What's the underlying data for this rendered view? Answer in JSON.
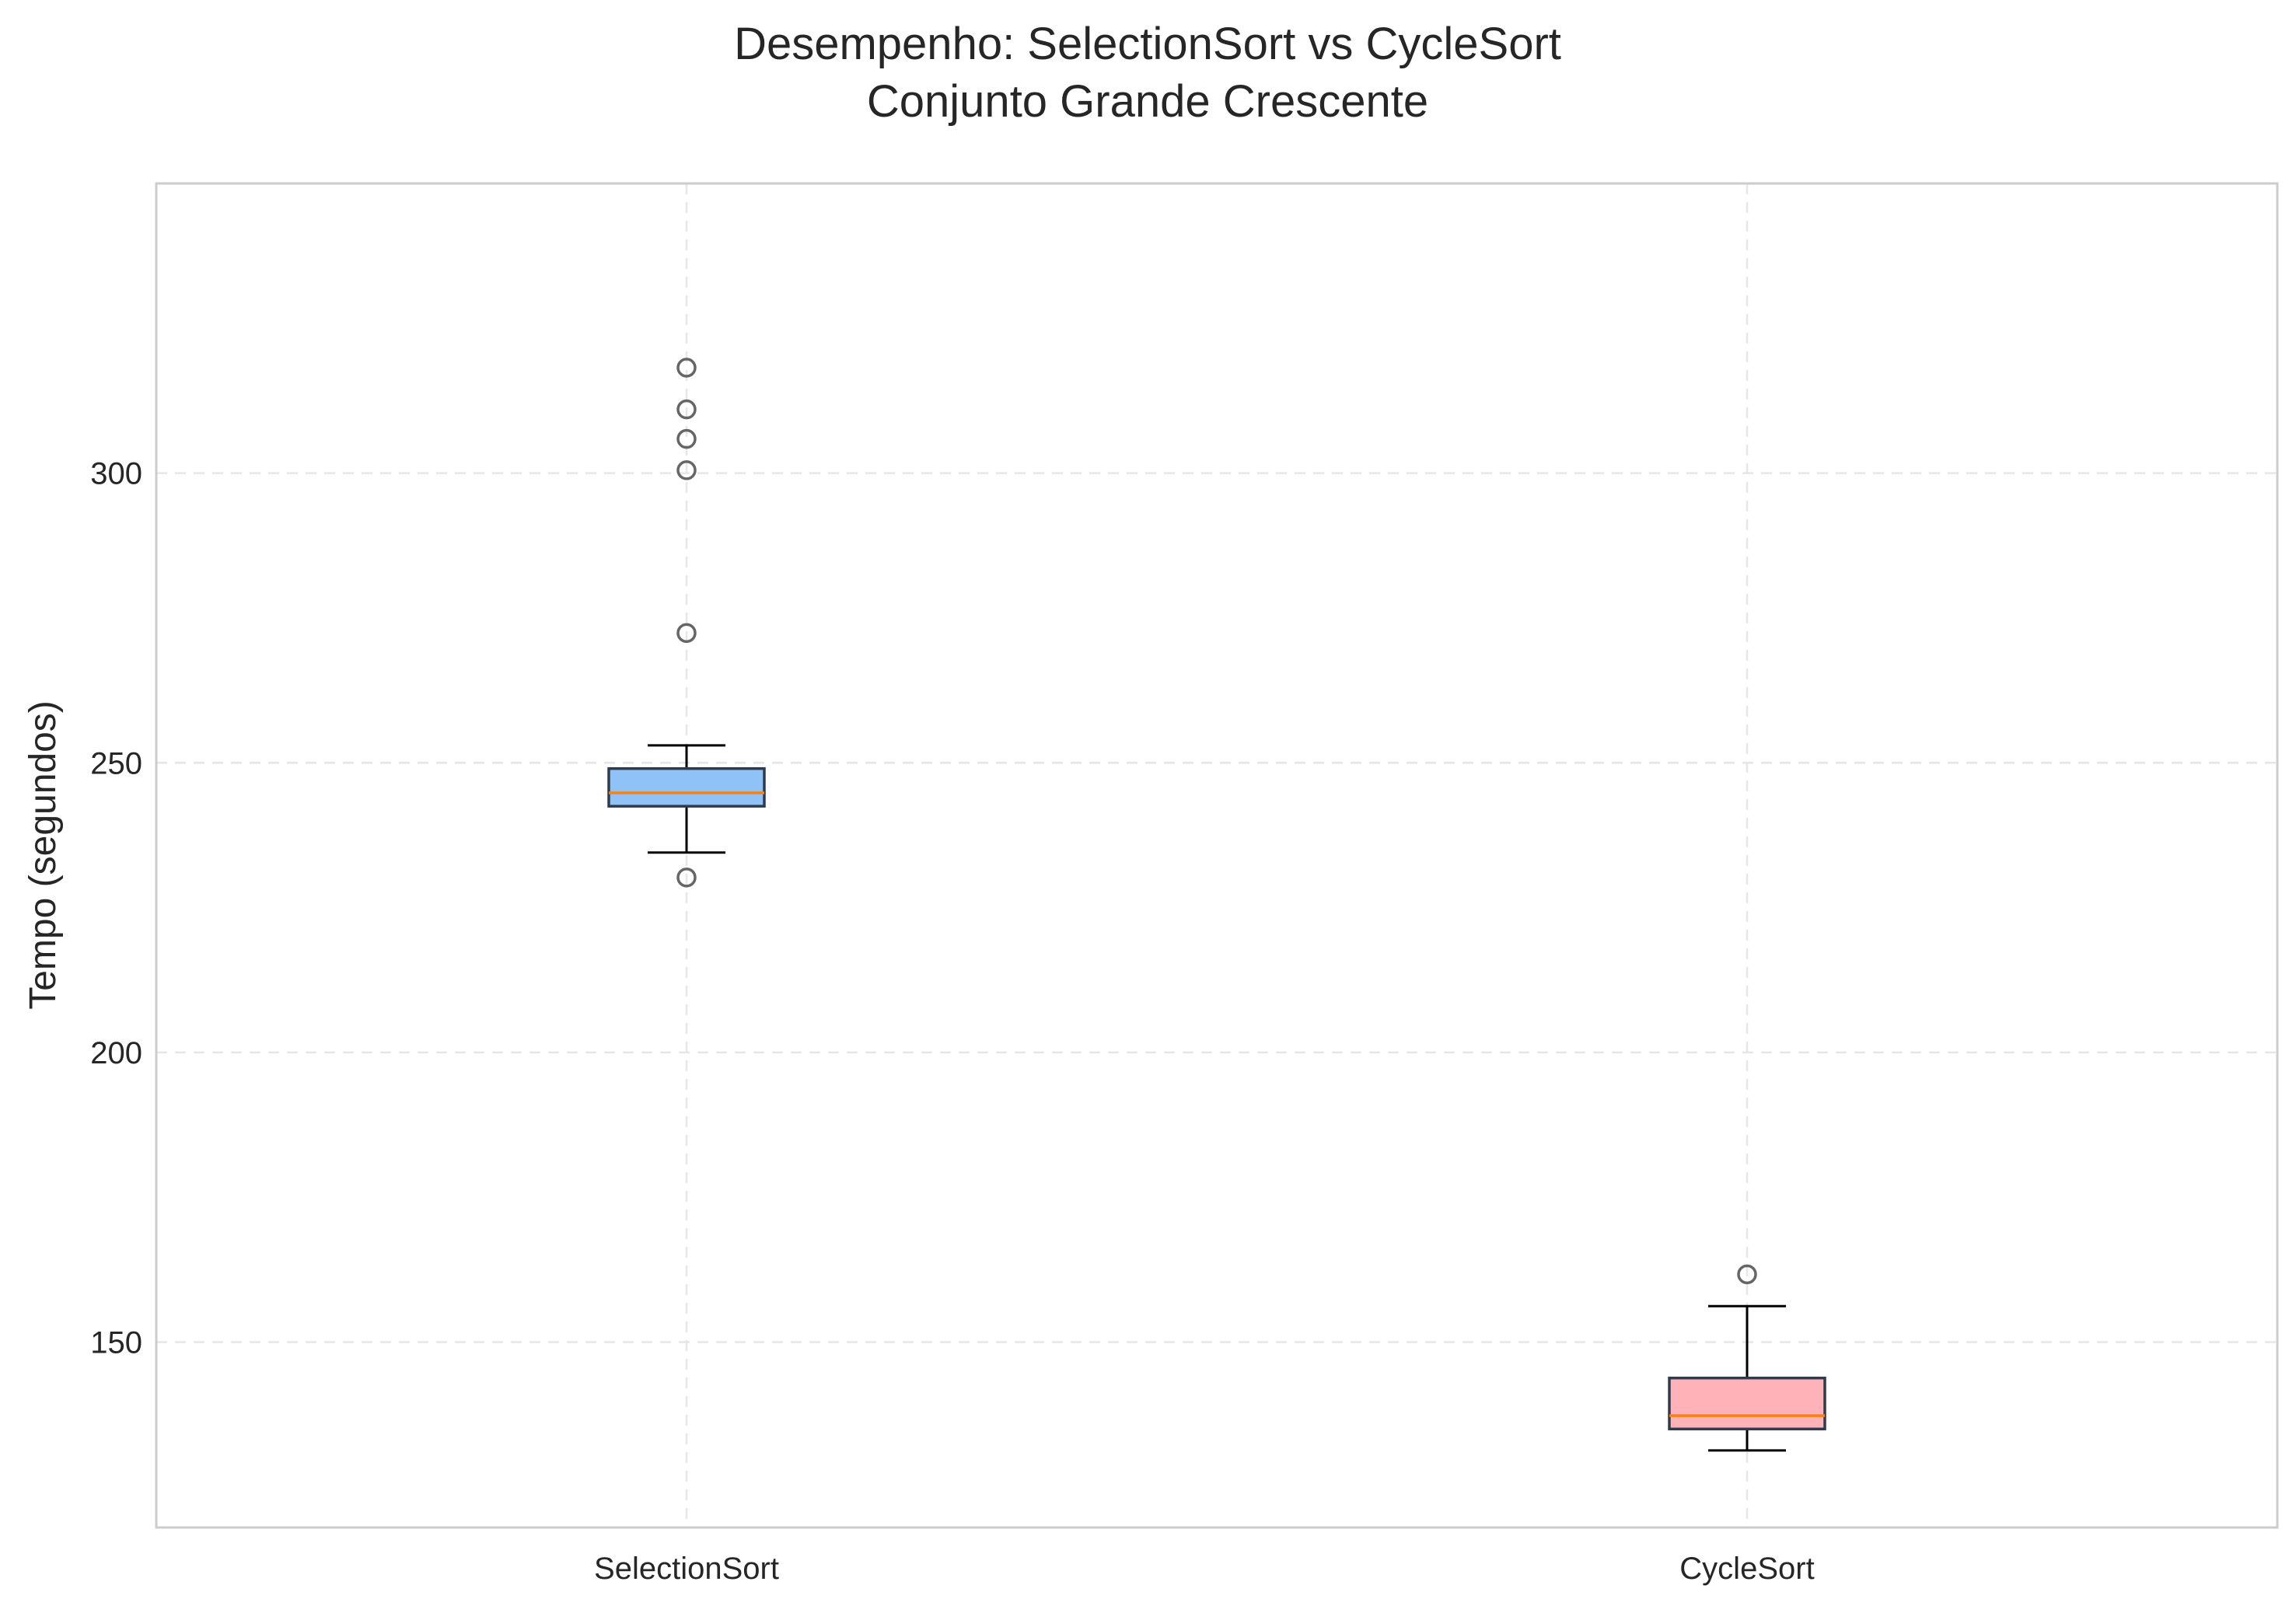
{
  "chart_data": {
    "type": "box",
    "title": [
      "Desempenho: SelectionSort vs CycleSort",
      "Conjunto Grande Crescente"
    ],
    "xlabel": "",
    "ylabel": "Tempo (segundos)",
    "ylim": [
      118,
      350
    ],
    "yticks": [
      150,
      200,
      250,
      300
    ],
    "grid": true,
    "categories": [
      "SelectionSort",
      "CycleSort"
    ],
    "series": [
      {
        "name": "SelectionSort",
        "color": "#8fc3f7",
        "whisker_low": 234.5,
        "q1": 242.5,
        "median": 244.8,
        "q3": 249.0,
        "whisker_high": 253.0,
        "outliers": [
          230.2,
          272.4,
          300.5,
          305.9,
          311.0,
          318.2
        ]
      },
      {
        "name": "CycleSort",
        "color": "#ffb3b8",
        "whisker_low": 131.3,
        "q1": 135.0,
        "median": 137.3,
        "q3": 143.8,
        "whisker_high": 156.2,
        "outliers": [
          161.7
        ]
      }
    ],
    "colors": {
      "median": "#ff7f0e",
      "box_edge": "#2e3b4e",
      "whisker": "#000000",
      "outlier_edge": "#666666",
      "grid": "#e6e6e6",
      "frame": "#cccccc"
    }
  }
}
